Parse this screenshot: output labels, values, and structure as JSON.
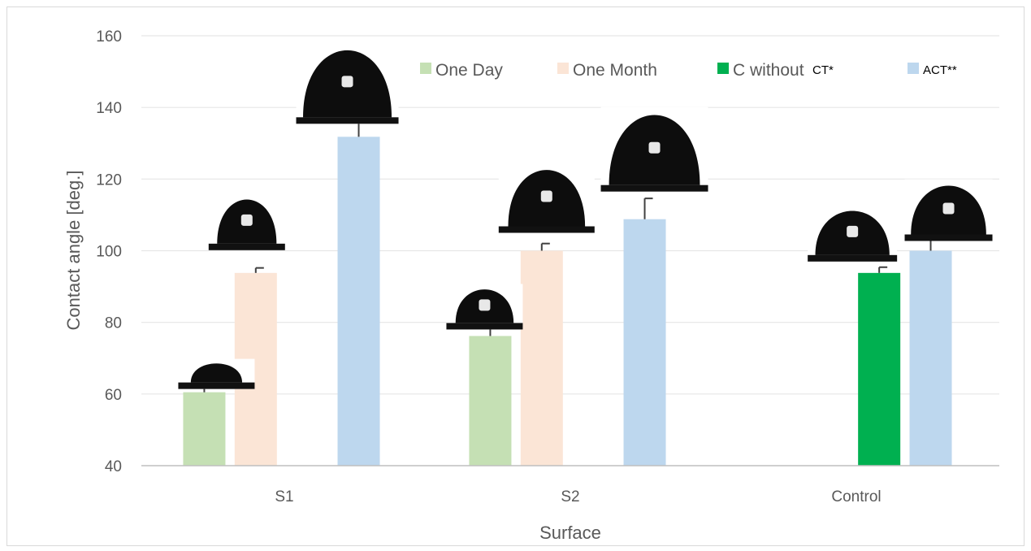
{
  "chart_data": {
    "type": "bar",
    "categories": [
      "S1",
      "S2",
      "Control"
    ],
    "series": [
      {
        "name": "One Day",
        "color": "#c5e0b4",
        "values": [
          60.5,
          76.2,
          null
        ],
        "errors": [
          5.5,
          5.8,
          null
        ]
      },
      {
        "name": "One Month",
        "color": "#fbe5d6",
        "values": [
          93.8,
          100,
          null
        ],
        "errors": [
          1.4,
          2.0,
          null
        ]
      },
      {
        "name": "C without",
        "color": "#00b050",
        "values": [
          null,
          null,
          93.8
        ],
        "errors": [
          null,
          null,
          1.6
        ]
      },
      {
        "name": "ACT**",
        "color": "#bdd7ee",
        "values": [
          131.8,
          108.8,
          100
        ],
        "errors": [
          4.2,
          5.8,
          6.2
        ]
      }
    ],
    "legend_extra_label": "CT*",
    "xlabel": "Surface",
    "ylabel": "Contact angle [deg.]",
    "ylim": [
      40,
      160
    ],
    "yticks": [
      40,
      60,
      80,
      100,
      120,
      140,
      160
    ],
    "grid": true,
    "legend_position": "top-right",
    "droplet_images": [
      {
        "category": "S1",
        "series": "One Day"
      },
      {
        "category": "S1",
        "series": "One Month"
      },
      {
        "category": "S1",
        "series": "ACT**"
      },
      {
        "category": "S2",
        "series": "One Day"
      },
      {
        "category": "S2",
        "series": "One Month"
      },
      {
        "category": "S2",
        "series": "ACT**"
      },
      {
        "category": "Control",
        "series": "C without"
      },
      {
        "category": "Control",
        "series": "ACT**"
      }
    ]
  }
}
